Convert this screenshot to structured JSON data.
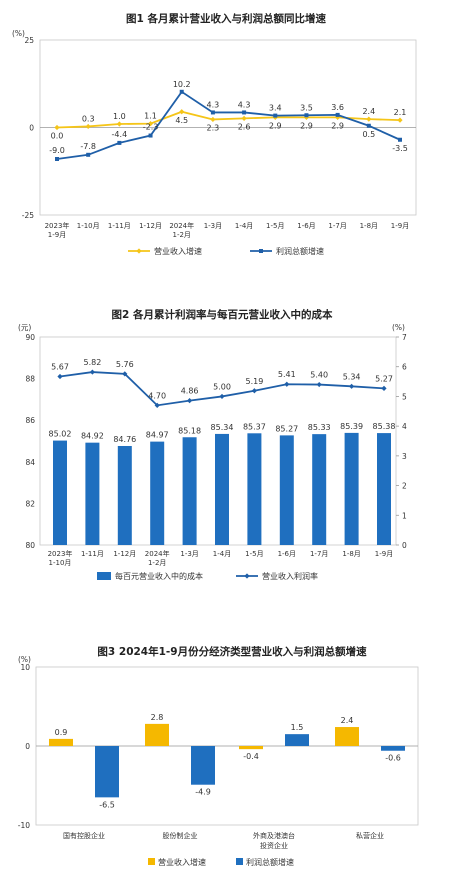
{
  "chart_data": [
    {
      "type": "line",
      "title": "图1  各月累计营业收入与利润总额同比增速",
      "unit": "(%)",
      "ylim": [
        -25,
        25
      ],
      "yticks": [
        "25",
        "0",
        "-25"
      ],
      "categories": [
        "2023年\n1-9月",
        "1-10月",
        "1-11月",
        "1-12月",
        "2024年\n1-2月",
        "1-3月",
        "1-4月",
        "1-5月",
        "1-6月",
        "1-7月",
        "1-8月",
        "1-9月"
      ],
      "series": [
        {
          "name": "营业收入增速",
          "color": "#f5c518",
          "values": [
            0.0,
            0.3,
            1.0,
            1.1,
            4.5,
            2.3,
            2.6,
            2.9,
            2.9,
            2.9,
            2.4,
            2.1
          ],
          "labels": [
            "0.0",
            "0.3",
            "1.0",
            "1.1",
            "4.5",
            "2.3",
            "2.6",
            "2.9",
            "2.9",
            "2.9",
            "2.4",
            "2.1"
          ]
        },
        {
          "name": "利润总额增速",
          "color": "#1f5fa8",
          "values": [
            -9.0,
            -7.8,
            -4.4,
            -2.3,
            10.2,
            4.3,
            4.3,
            3.4,
            3.5,
            3.6,
            0.5,
            -3.5
          ],
          "labels": [
            "-9.0",
            "-7.8",
            "-4.4",
            "-2.3",
            "10.2",
            "4.3",
            "4.3",
            "3.4",
            "3.5",
            "3.6",
            "0.5",
            "-3.5"
          ]
        }
      ],
      "grid": false
    },
    {
      "type": "bar",
      "title": "图2  各月累计利润率与每百元营业收入中的成本",
      "unit_left": "(元)",
      "unit_right": "(%)",
      "ylim_left": [
        80,
        90
      ],
      "yticks_left": [
        "90",
        "88",
        "86",
        "84",
        "82",
        "80"
      ],
      "ylim_right": [
        0,
        7
      ],
      "yticks_right": [
        "7",
        "6",
        "5",
        "4",
        "3",
        "2",
        "1",
        "0"
      ],
      "categories": [
        "2023年\n1-10月",
        "1-11月",
        "1-12月",
        "2024年\n1-2月",
        "1-3月",
        "1-4月",
        "1-5月",
        "1-6月",
        "1-7月",
        "1-8月",
        "1-9月"
      ],
      "series": [
        {
          "name": "每百元营业收入中的成本",
          "color": "#1f6fbf",
          "axis": "left",
          "values": [
            85.02,
            84.92,
            84.76,
            84.97,
            85.18,
            85.34,
            85.37,
            85.27,
            85.33,
            85.39,
            85.38
          ],
          "labels": [
            "85.02",
            "84.92",
            "84.76",
            "84.97",
            "85.18",
            "85.34",
            "85.37",
            "85.27",
            "85.33",
            "85.39",
            "85.38"
          ]
        },
        {
          "name": "营业收入利润率",
          "color": "#1f5fa8",
          "axis": "right",
          "type": "line",
          "values": [
            5.67,
            5.82,
            5.76,
            4.7,
            4.86,
            5.0,
            5.19,
            5.41,
            5.4,
            5.34,
            5.27
          ],
          "labels": [
            "5.67",
            "5.82",
            "5.76",
            "4.70",
            "4.86",
            "5.00",
            "5.19",
            "5.41",
            "5.40",
            "5.34",
            "5.27"
          ]
        }
      ],
      "grid": false
    },
    {
      "type": "bar",
      "title": "图3  2024年1-9月份分经济类型营业收入与利润总额增速",
      "unit": "(%)",
      "ylim": [
        -10,
        10
      ],
      "yticks": [
        "10",
        "0",
        "-10"
      ],
      "categories": [
        "国有控股企业",
        "股份制企业",
        "外商及港澳台\n投资企业",
        "私营企业"
      ],
      "series": [
        {
          "name": "营业收入增速",
          "color": "#f5b800",
          "values": [
            0.9,
            2.8,
            -0.4,
            2.4
          ],
          "labels": [
            "0.9",
            "2.8",
            "-0.4",
            "2.4"
          ]
        },
        {
          "name": "利润总额增速",
          "color": "#1f6fbf",
          "values": [
            -6.5,
            -4.9,
            1.5,
            -0.6
          ],
          "labels": [
            "-6.5",
            "-4.9",
            "1.5",
            "-0.6"
          ]
        }
      ],
      "grid": false
    }
  ]
}
